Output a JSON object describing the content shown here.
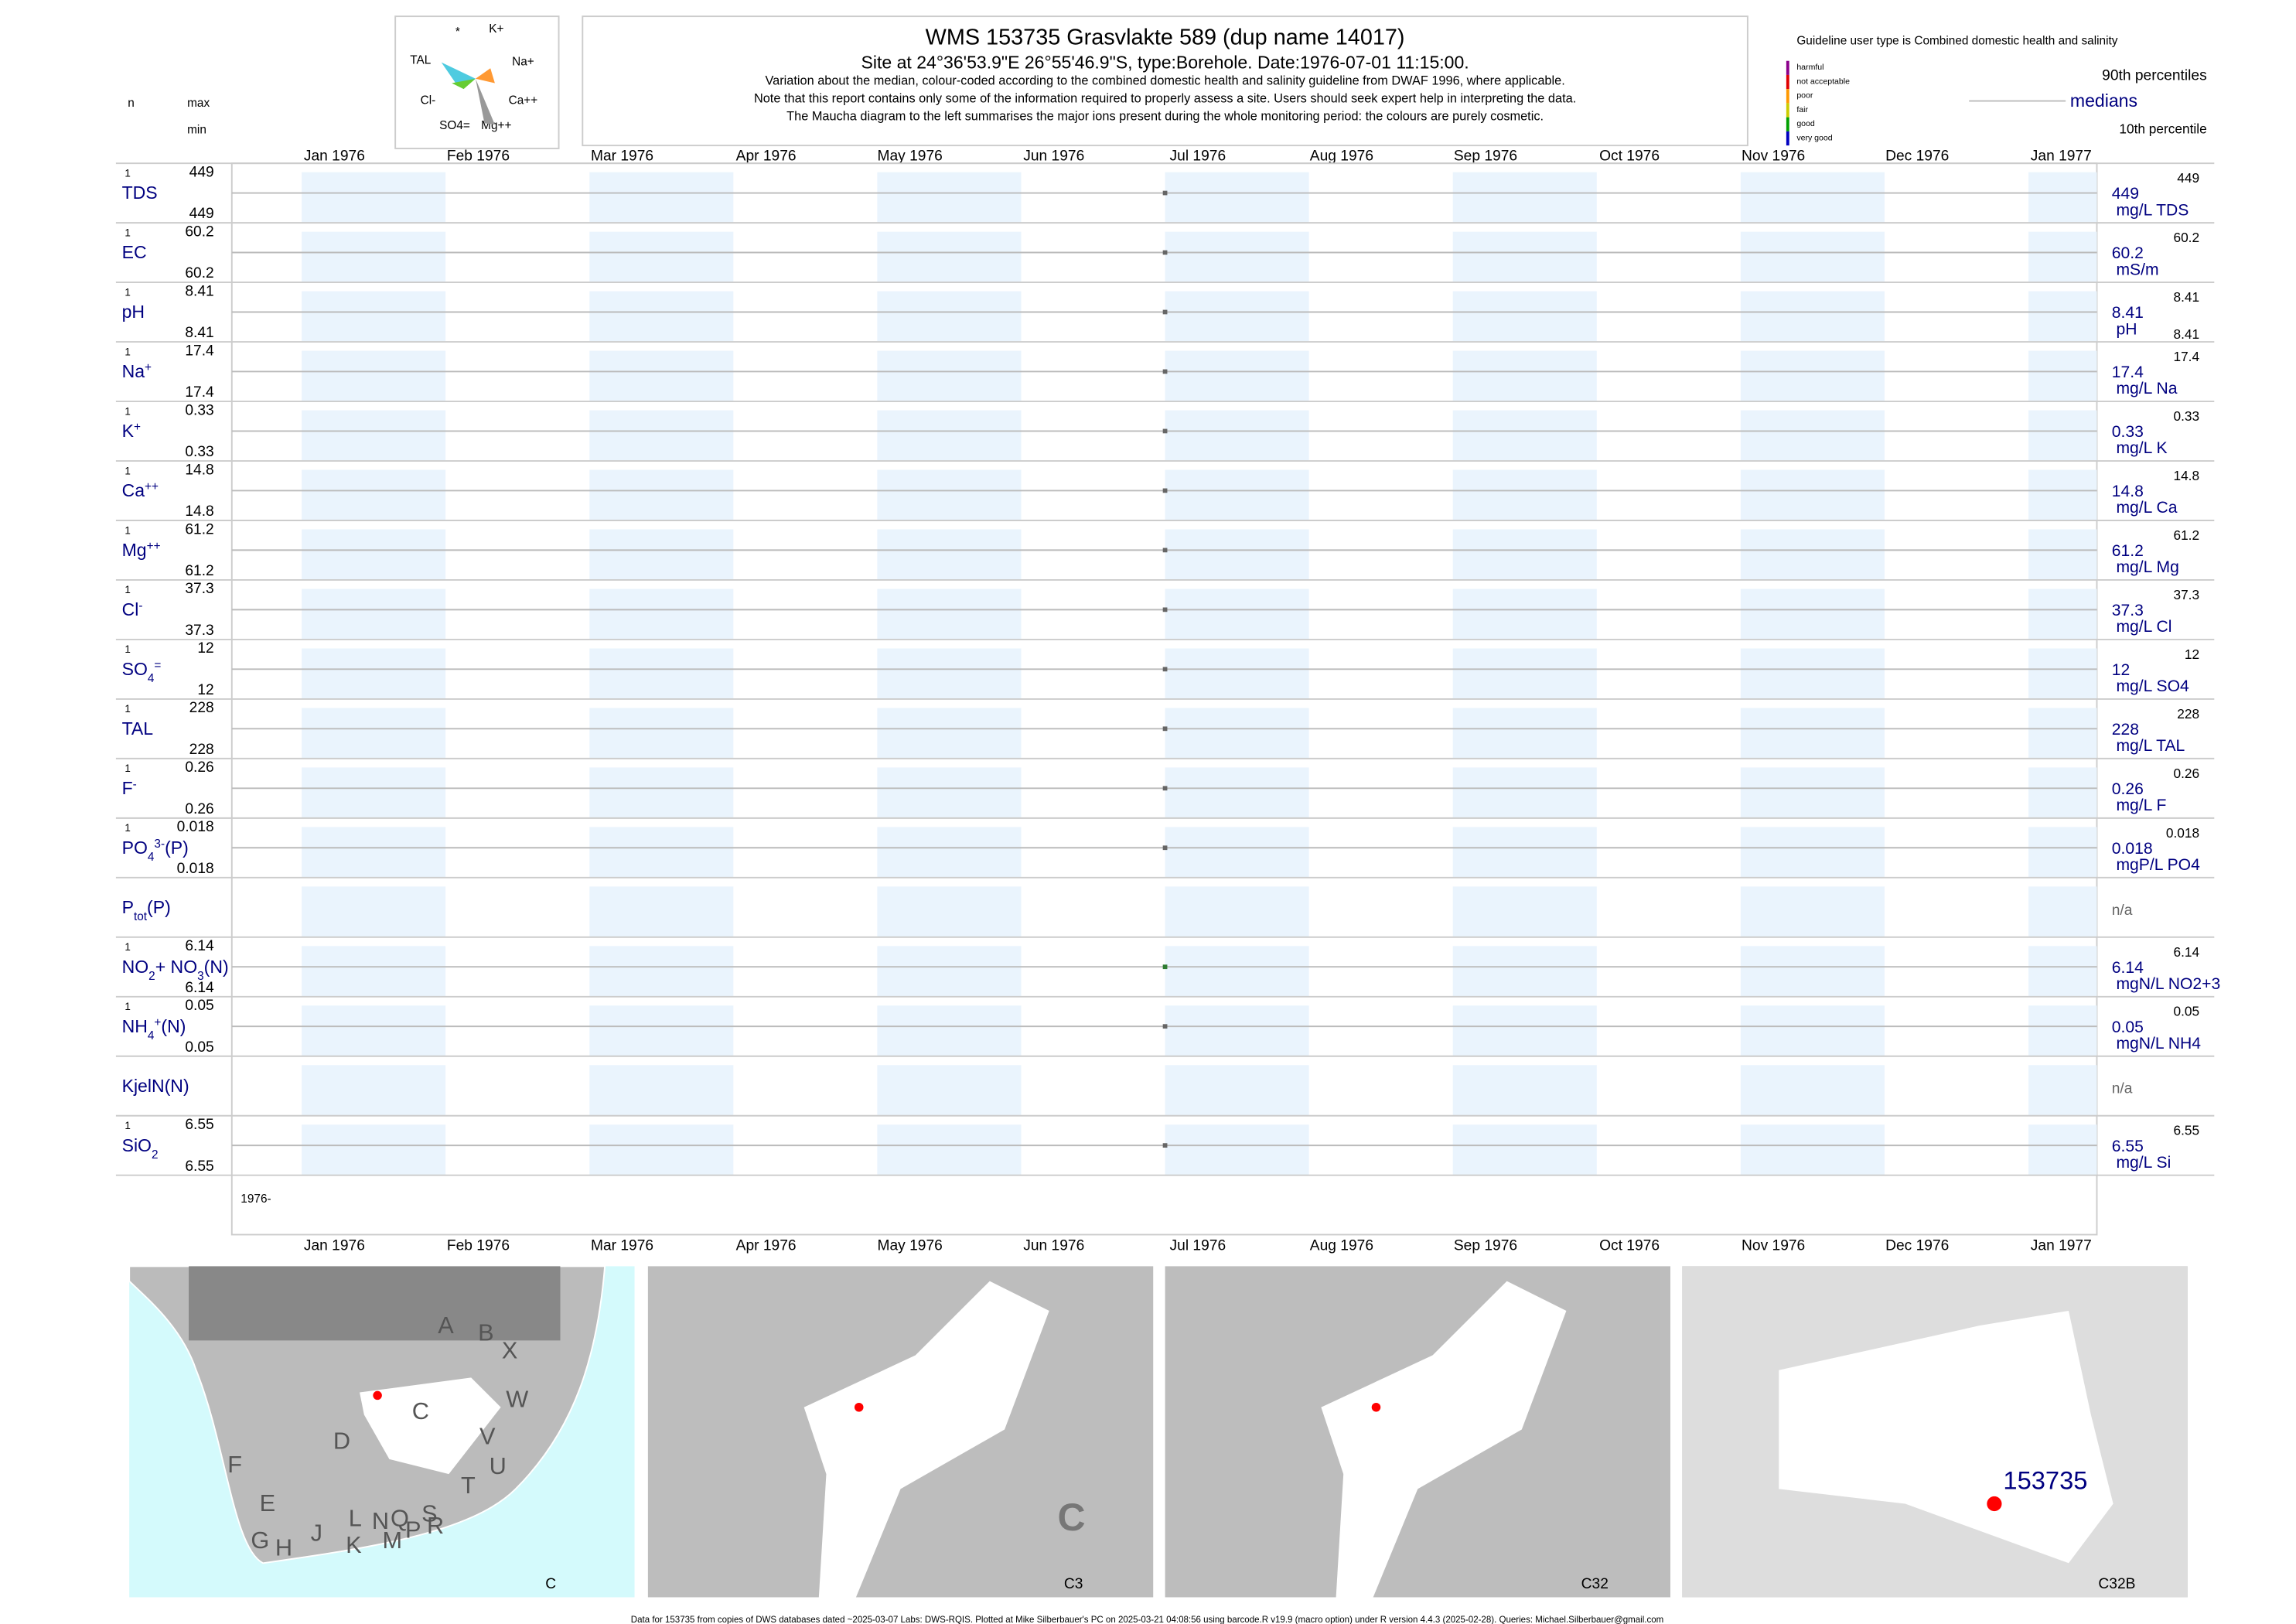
{
  "header": {
    "title": "WMS 153735  Grasvlakte 589 (dup name 14017)",
    "subtitle": "Site at 24°36'53.9\"E 26°55'46.9\"S, type:Borehole. Date:1976-07-01 11:15:00.",
    "notes": [
      "Variation about the median,  colour-coded according to the combined domestic health and salinity guideline from DWAF 1996, where applicable.",
      "Note that this report contains only some of the information required to properly assess a site. Users should seek expert help in interpreting the data.",
      "The Maucha diagram to the left summarises the major ions present during the whole monitoring period: the colours are purely cosmetic."
    ],
    "col_n": "n",
    "col_max": "max",
    "col_min": "min"
  },
  "maucha": {
    "labels": [
      "*",
      "K+",
      "TAL",
      "Na+",
      "Cl-",
      "Ca++",
      "SO4=",
      "Mg++"
    ]
  },
  "legend": {
    "guideline": "Guideline user type is Combined domestic health and salinity",
    "classes": [
      {
        "label": "harmful",
        "color": "#8b008b"
      },
      {
        "label": "not acceptable",
        "color": "#e00000"
      },
      {
        "label": "poor",
        "color": "#ff9900"
      },
      {
        "label": "fair",
        "color": "#cccc00"
      },
      {
        "label": "good",
        "color": "#00a000"
      },
      {
        "label": "very good",
        "color": "#0000c0"
      }
    ],
    "p90": "90th percentiles",
    "medians": "medians",
    "p10": "10th percentile"
  },
  "months": [
    "Jan 1976",
    "Feb 1976",
    "Mar 1976",
    "Apr 1976",
    "May 1976",
    "Jun 1976",
    "Jul 1976",
    "Aug 1976",
    "Sep 1976",
    "Oct 1976",
    "Nov 1976",
    "Dec 1976",
    "Jan 1977"
  ],
  "year_label": "1976-",
  "rows": [
    {
      "name": [
        {
          "text": "TDS",
          "pos": "base"
        }
      ],
      "n": 1,
      "max": 449,
      "min": 449,
      "median": 449,
      "unit": "mg/L TDS",
      "p90": 449,
      "color": "#666"
    },
    {
      "name": [
        {
          "text": "EC",
          "pos": "base"
        }
      ],
      "n": 1,
      "max": 60.2,
      "min": 60.2,
      "median": 60.2,
      "unit": "mS/m",
      "p90": 60.2,
      "color": "#666"
    },
    {
      "name": [
        {
          "text": "pH",
          "pos": "base"
        }
      ],
      "n": 1,
      "max": 8.41,
      "min": 8.41,
      "median": 8.41,
      "unit": "pH",
      "p90": 8.41,
      "p10": 8.41,
      "color": "#666"
    },
    {
      "name": [
        {
          "text": "Na",
          "pos": "base"
        },
        {
          "text": "+",
          "pos": "sup"
        }
      ],
      "n": 1,
      "max": 17.4,
      "min": 17.4,
      "median": 17.4,
      "unit": "mg/L Na",
      "p90": 17.4,
      "color": "#666"
    },
    {
      "name": [
        {
          "text": "K",
          "pos": "base"
        },
        {
          "text": "+",
          "pos": "sup"
        }
      ],
      "n": 1,
      "max": 0.33,
      "min": 0.33,
      "median": 0.33,
      "unit": "mg/L K",
      "p90": 0.33,
      "color": "#666"
    },
    {
      "name": [
        {
          "text": "Ca",
          "pos": "base"
        },
        {
          "text": "++",
          "pos": "sup"
        }
      ],
      "n": 1,
      "max": 14.8,
      "min": 14.8,
      "median": 14.8,
      "unit": "mg/L Ca",
      "p90": 14.8,
      "color": "#666"
    },
    {
      "name": [
        {
          "text": "Mg",
          "pos": "base"
        },
        {
          "text": "++",
          "pos": "sup"
        }
      ],
      "n": 1,
      "max": 61.2,
      "min": 61.2,
      "median": 61.2,
      "unit": "mg/L Mg",
      "p90": 61.2,
      "color": "#666"
    },
    {
      "name": [
        {
          "text": "Cl",
          "pos": "base"
        },
        {
          "text": "-",
          "pos": "sup"
        }
      ],
      "n": 1,
      "max": 37.3,
      "min": 37.3,
      "median": 37.3,
      "unit": "mg/L Cl",
      "p90": 37.3,
      "color": "#666"
    },
    {
      "name": [
        {
          "text": "SO",
          "pos": "base"
        },
        {
          "text": "4",
          "pos": "sub"
        },
        {
          "text": "=",
          "pos": "sup"
        }
      ],
      "n": 1,
      "max": 12,
      "min": 12,
      "median": 12,
      "unit": "mg/L SO4",
      "p90": 12,
      "color": "#666"
    },
    {
      "name": [
        {
          "text": "TAL",
          "pos": "base"
        }
      ],
      "n": 1,
      "max": 228,
      "min": 228,
      "median": 228,
      "unit": "mg/L TAL",
      "p90": 228,
      "color": "#666"
    },
    {
      "name": [
        {
          "text": "F",
          "pos": "base"
        },
        {
          "text": "-",
          "pos": "sup"
        }
      ],
      "n": 1,
      "max": 0.26,
      "min": 0.26,
      "median": 0.26,
      "unit": "mg/L F",
      "p90": 0.26,
      "color": "#666"
    },
    {
      "name": [
        {
          "text": "PO",
          "pos": "base"
        },
        {
          "text": "4",
          "pos": "sub"
        },
        {
          "text": "3-",
          "pos": "sup"
        },
        {
          "text": "(P)",
          "pos": "base"
        }
      ],
      "n": 1,
      "max": 0.018,
      "min": 0.018,
      "median": 0.018,
      "unit": "mgP/L PO4",
      "p90": 0.018,
      "color": "#666"
    },
    {
      "name": [
        {
          "text": "P",
          "pos": "base"
        },
        {
          "text": "tot",
          "pos": "sub"
        },
        {
          "text": "(P)",
          "pos": "base"
        }
      ],
      "na": "n/a"
    },
    {
      "name": [
        {
          "text": "NO",
          "pos": "base"
        },
        {
          "text": "2",
          "pos": "sub"
        },
        {
          "text": "+ NO",
          "pos": "base"
        },
        {
          "text": "3",
          "pos": "sub"
        },
        {
          "text": "(N)",
          "pos": "base"
        }
      ],
      "n": 1,
      "max": 6.14,
      "min": 6.14,
      "median": 6.14,
      "unit": "mgN/L NO2+3",
      "p90": 6.14,
      "color": "#2e7d32"
    },
    {
      "name": [
        {
          "text": "NH",
          "pos": "base"
        },
        {
          "text": "4",
          "pos": "sub"
        },
        {
          "text": "+",
          "pos": "sup"
        },
        {
          "text": "(N)",
          "pos": "base"
        }
      ],
      "n": 1,
      "max": 0.05,
      "min": 0.05,
      "median": 0.05,
      "unit": "mgN/L NH4",
      "p90": 0.05,
      "color": "#666"
    },
    {
      "name": [
        {
          "text": "KjelN(N)",
          "pos": "base"
        }
      ],
      "na": "n/a"
    },
    {
      "name": [
        {
          "text": "SiO",
          "pos": "base"
        },
        {
          "text": "2",
          "pos": "sub"
        }
      ],
      "n": 1,
      "max": 6.55,
      "min": 6.55,
      "median": 6.55,
      "unit": "mg/L Si",
      "p90": 6.55,
      "color": "#666"
    }
  ],
  "maps": [
    {
      "label": "C",
      "letters": [
        "A",
        "B",
        "X",
        "C",
        "W",
        "D",
        "V",
        "U",
        "T",
        "F",
        "E",
        "G",
        "H",
        "J",
        "K",
        "L",
        "N",
        "Q",
        "S",
        "M",
        "P",
        "R"
      ]
    },
    {
      "label": "C3",
      "letters": [
        "C"
      ]
    },
    {
      "label": "C32"
    },
    {
      "label": "C32B",
      "site": "153735"
    }
  ],
  "footer": "Data for 153735 from copies of DWS databases dated ~2025-03-07 Labs: DWS-RQIS. Plotted at Mike Silberbauer's PC on 2025-03-21 04:08:56 using barcode.R v19.9 (macro option) under R version 4.4.3 (2025-02-28). Queries: Michael.Silberbauer@gmail.com"
}
